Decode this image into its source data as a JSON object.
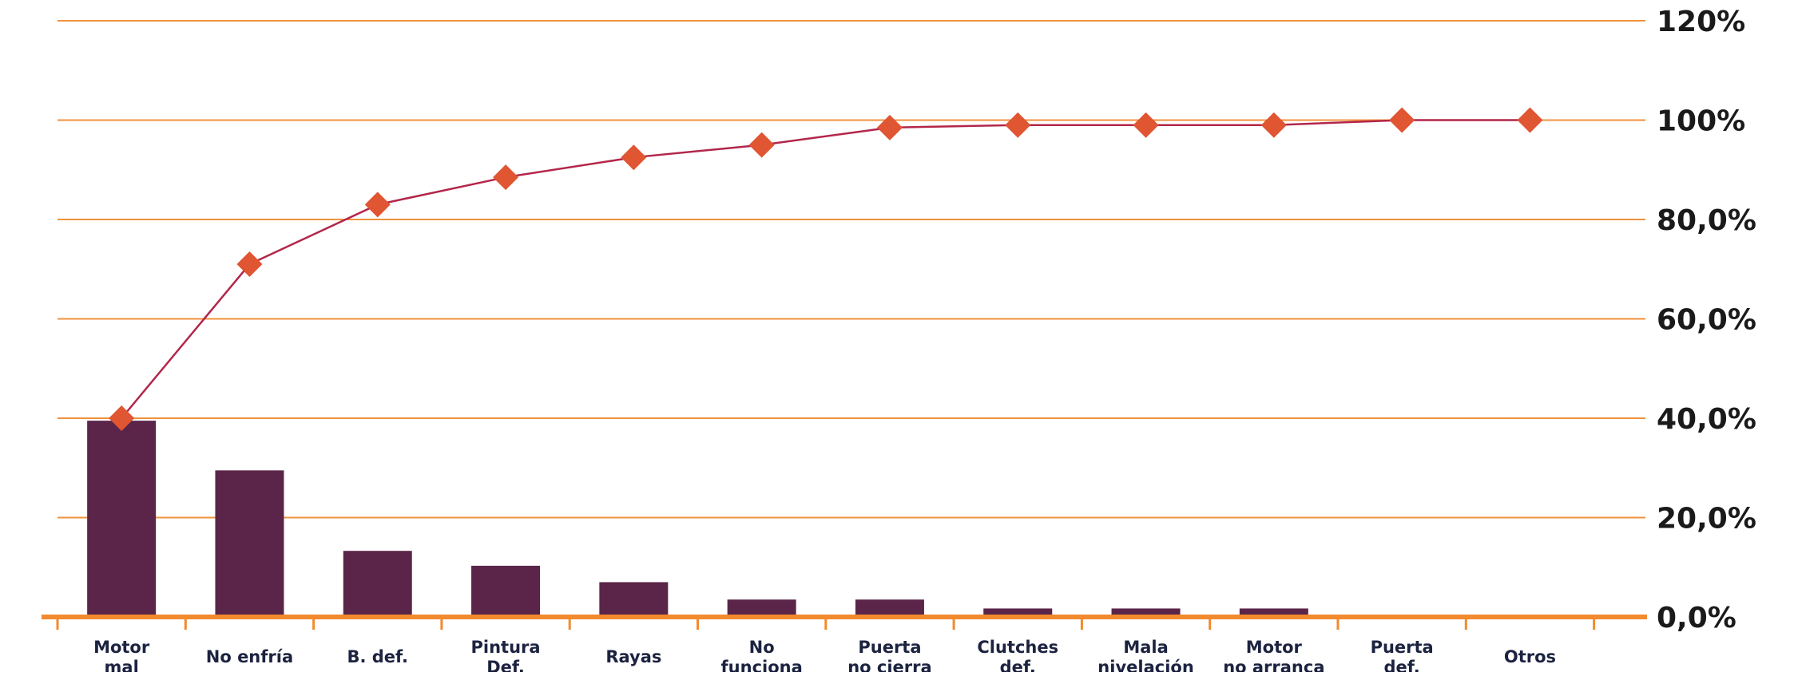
{
  "chart_data": {
    "type": "bar",
    "categories": [
      [
        "Motor",
        "mal"
      ],
      [
        "No enfría"
      ],
      [
        "B. def."
      ],
      [
        "Pintura",
        "Def."
      ],
      [
        "Rayas"
      ],
      [
        "No",
        "funciona"
      ],
      [
        "Puerta",
        "no cierra"
      ],
      [
        "Clutches",
        "def."
      ],
      [
        "Mala",
        "nivelación"
      ],
      [
        "Motor",
        "no arranca"
      ],
      [
        "Puerta",
        "def."
      ],
      [
        "Otros"
      ]
    ],
    "series": [
      {
        "type": "bar",
        "values": [
          39.5,
          29.5,
          13.3,
          10.3,
          7.0,
          3.5,
          3.5,
          1.7,
          1.7,
          1.7,
          0,
          0
        ]
      },
      {
        "type": "line",
        "values": [
          40.0,
          71.0,
          83.0,
          88.5,
          92.5,
          95.0,
          98.5,
          99.0,
          99.0,
          99.0,
          100.0,
          100.0
        ]
      }
    ],
    "ylim": [
      0,
      120
    ],
    "yticks": [
      "0,0%",
      "20,0%",
      "40,0%",
      "60,0%",
      "80,0%",
      "100%",
      "120%"
    ],
    "ytick_values": [
      0,
      20,
      40,
      60,
      80,
      100,
      120
    ],
    "y_axis_side": "right",
    "grid": true,
    "colors": {
      "bars": "#5a2549",
      "line": "#b3264a",
      "markers": "#e05532",
      "grid": "#f0923c",
      "axis": "#f28a2e"
    }
  }
}
